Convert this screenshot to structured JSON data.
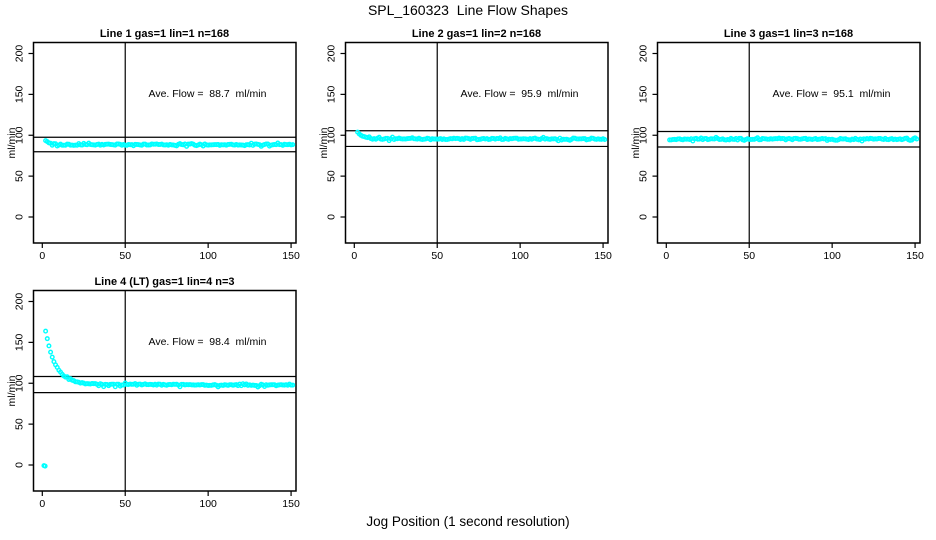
{
  "figure": {
    "title": "SPL_160323  Line Flow Shapes",
    "xlabel": "Jog Position (1 second resolution)",
    "ylabel": "ml/min",
    "background": "#ffffff",
    "point_color": "#00ffff",
    "axis_color": "#000000",
    "xlim": [
      0,
      150
    ],
    "ylim": [
      0,
      200
    ],
    "xticks": [
      0,
      50,
      100,
      150
    ],
    "yticks": [
      0,
      50,
      100,
      150,
      200
    ],
    "vline_x": 50,
    "grid": false,
    "legend": "none"
  },
  "chart_data": [
    {
      "type": "scatter",
      "title": "Line 1 gas=1 lin=1 n=168",
      "gas": 1,
      "lin": 1,
      "n": 168,
      "ave_flow": 88.7,
      "ave_flow_units": "ml/min",
      "annotation": "Ave. Flow =  88.7  ml/min",
      "ref_lines": {
        "upper": 97.57,
        "lower": 79.83
      },
      "series": {
        "x_start": 2,
        "x_end": 151,
        "start_value": 94.0,
        "plateau": 88.5,
        "decay_tau": 2.4,
        "noise": 0.85,
        "drift": 0,
        "outliers": [],
        "seed": 101
      }
    },
    {
      "type": "scatter",
      "title": "Line 2 gas=1 lin=2 n=168",
      "gas": 1,
      "lin": 2,
      "n": 168,
      "ave_flow": 95.9,
      "ave_flow_units": "ml/min",
      "annotation": "Ave. Flow =  95.9  ml/min",
      "ref_lines": {
        "upper": 105.49,
        "lower": 86.31
      },
      "series": {
        "x_start": 2,
        "x_end": 151,
        "start_value": 104.5,
        "plateau": 95.6,
        "decay_tau": 3.0,
        "noise": 0.85,
        "drift": 0,
        "outliers": [],
        "seed": 202
      }
    },
    {
      "type": "scatter",
      "title": "Line 3 gas=1 lin=3 n=168",
      "gas": 1,
      "lin": 3,
      "n": 168,
      "ave_flow": 95.1,
      "ave_flow_units": "ml/min",
      "annotation": "Ave. Flow =  95.1  ml/min",
      "ref_lines": {
        "upper": 104.61,
        "lower": 85.59
      },
      "series": {
        "x_start": 2,
        "x_end": 151,
        "start_value": 93.5,
        "plateau": 95.3,
        "decay_tau": 1.0,
        "noise": 0.9,
        "drift": 0,
        "outliers": [],
        "seed": 303
      }
    },
    {
      "type": "scatter",
      "title": "Line 4 (LT) gas=1 lin=4 n=3",
      "gas": 1,
      "lin": 4,
      "n": 3,
      "ave_flow": 98.4,
      "ave_flow_units": "ml/min",
      "annotation": "Ave. Flow =  98.4  ml/min",
      "ref_lines": {
        "upper": 108.24,
        "lower": 88.56
      },
      "series": {
        "x_start": 2,
        "x_end": 151,
        "start_value": 164.0,
        "plateau": 98.8,
        "decay_tau": 6.0,
        "noise": 0.7,
        "drift": -0.009,
        "outliers": [
          [
            1,
            -0.8
          ],
          [
            1.7,
            -1.3
          ]
        ],
        "seed": 404
      }
    }
  ]
}
